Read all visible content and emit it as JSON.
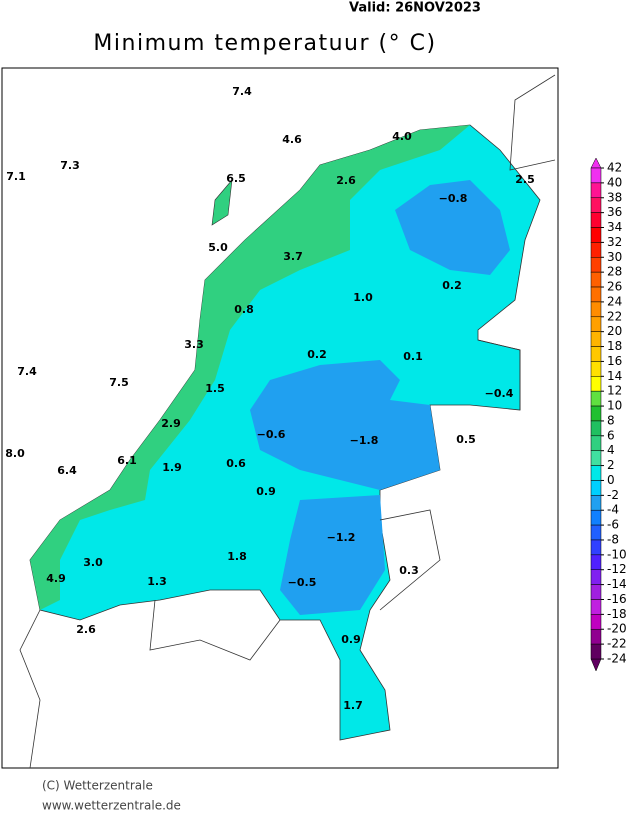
{
  "header": {
    "valid": "Valid:  26NOV2023",
    "title": "Minimum temperatuur (° C)"
  },
  "map": {
    "labels": [
      "7.4",
      "4.6",
      "4.0",
      "7.1",
      "7.3",
      "6.5",
      "2.6",
      "−0.8",
      "2.5",
      "5.0",
      "3.7",
      "1.0",
      "0.2",
      "0.8",
      "3.3",
      "0.2",
      "0.1",
      "7.4",
      "7.5",
      "1.5",
      "−0.4",
      "2.9",
      "−0.6",
      "−1.8",
      "0.5",
      "8.0",
      "6.1",
      "6.4",
      "1.9",
      "0.6",
      "0.9",
      "−1.2",
      "3.0",
      "1.8",
      "4.9",
      "1.3",
      "−0.5",
      "0.3",
      "2.6",
      "0.9",
      "1.7"
    ]
  },
  "legend": {
    "ticks": [
      42,
      40,
      38,
      36,
      34,
      32,
      30,
      28,
      26,
      24,
      22,
      20,
      18,
      16,
      14,
      12,
      10,
      8,
      6,
      4,
      2,
      0,
      -2,
      -4,
      -6,
      -8,
      -10,
      -12,
      -14,
      -16,
      -18,
      -20,
      -22,
      -24
    ],
    "colors": [
      "#f030f0",
      "#ff1493",
      "#ff1060",
      "#ff0030",
      "#ff0000",
      "#ff2000",
      "#ff4000",
      "#ff6000",
      "#ff7000",
      "#ff8c00",
      "#ffa000",
      "#ffb400",
      "#ffc800",
      "#ffe000",
      "#ffff00",
      "#60e040",
      "#20c030",
      "#20c060",
      "#30d080",
      "#40e0a0",
      "#00e8e8",
      "#00d0ff",
      "#20a0f0",
      "#1080ff",
      "#2060ff",
      "#3040ff",
      "#5020ff",
      "#8020f0",
      "#a020e0",
      "#c020e0",
      "#c000c0",
      "#900090",
      "#600060"
    ]
  },
  "footer": {
    "credit": "(C) Wetterzentrale",
    "url": "www.wetterzentrale.de"
  }
}
